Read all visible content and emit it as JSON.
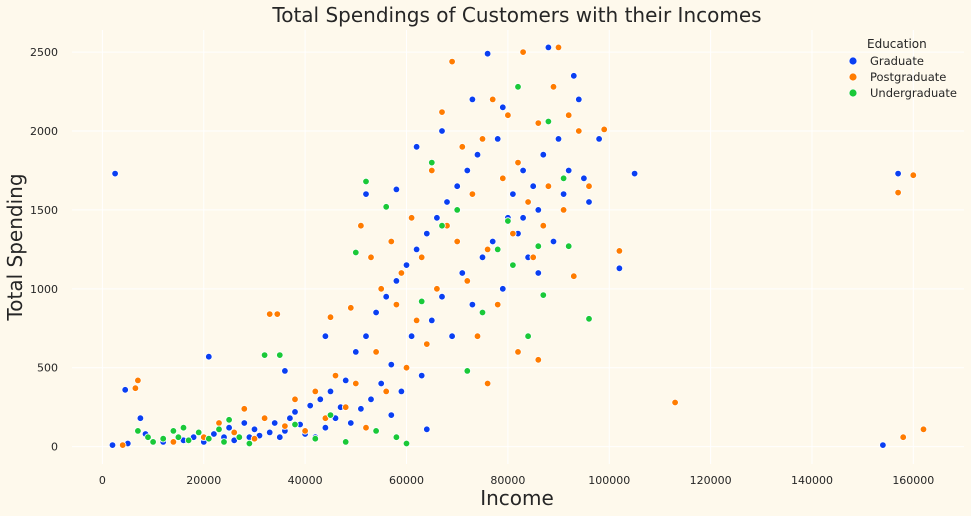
{
  "chart_data": {
    "type": "scatter",
    "title": "Total Spendings of Customers with their Incomes",
    "xlabel": "Income",
    "ylabel": "Total Spending",
    "xlim": [
      -6000,
      170000
    ],
    "ylim": [
      -110,
      2640
    ],
    "xticks": [
      "0",
      "20000",
      "40000",
      "60000",
      "80000",
      "100000",
      "120000",
      "140000",
      "160000"
    ],
    "yticks": [
      "0",
      "500",
      "1000",
      "1500",
      "2000",
      "2500"
    ],
    "grid": true,
    "legend_position": "top-right",
    "legend_title": "Education",
    "series": [
      {
        "name": "Graduate",
        "color": "#0a3ff2",
        "points": [
          [
            2000,
            10
          ],
          [
            2500,
            1730
          ],
          [
            4500,
            360
          ],
          [
            5000,
            20
          ],
          [
            7500,
            180
          ],
          [
            8500,
            80
          ],
          [
            12000,
            30
          ],
          [
            16000,
            40
          ],
          [
            18000,
            60
          ],
          [
            20000,
            30
          ],
          [
            22000,
            80
          ],
          [
            24000,
            60
          ],
          [
            25000,
            120
          ],
          [
            26000,
            40
          ],
          [
            28000,
            150
          ],
          [
            29000,
            60
          ],
          [
            30000,
            110
          ],
          [
            31000,
            70
          ],
          [
            33000,
            90
          ],
          [
            34000,
            150
          ],
          [
            35000,
            60
          ],
          [
            36000,
            100
          ],
          [
            37000,
            180
          ],
          [
            38000,
            220
          ],
          [
            39000,
            140
          ],
          [
            40000,
            80
          ],
          [
            41000,
            260
          ],
          [
            42000,
            60
          ],
          [
            43000,
            300
          ],
          [
            44000,
            120
          ],
          [
            45000,
            350
          ],
          [
            46000,
            180
          ],
          [
            47000,
            250
          ],
          [
            48000,
            420
          ],
          [
            49000,
            150
          ],
          [
            50000,
            600
          ],
          [
            51000,
            240
          ],
          [
            52000,
            700
          ],
          [
            53000,
            300
          ],
          [
            54000,
            850
          ],
          [
            55000,
            400
          ],
          [
            56000,
            950
          ],
          [
            57000,
            520
          ],
          [
            58000,
            1050
          ],
          [
            59000,
            350
          ],
          [
            60000,
            1150
          ],
          [
            61000,
            700
          ],
          [
            62000,
            1250
          ],
          [
            63000,
            450
          ],
          [
            64000,
            1350
          ],
          [
            65000,
            800
          ],
          [
            66000,
            1450
          ],
          [
            67000,
            950
          ],
          [
            68000,
            1550
          ],
          [
            69000,
            700
          ],
          [
            70000,
            1650
          ],
          [
            71000,
            1100
          ],
          [
            72000,
            1750
          ],
          [
            73000,
            900
          ],
          [
            74000,
            1850
          ],
          [
            75000,
            1200
          ],
          [
            76000,
            2490
          ],
          [
            77000,
            1300
          ],
          [
            78000,
            1950
          ],
          [
            79000,
            1000
          ],
          [
            80000,
            1450
          ],
          [
            81000,
            1600
          ],
          [
            82000,
            1350
          ],
          [
            83000,
            1750
          ],
          [
            84000,
            1200
          ],
          [
            85000,
            1650
          ],
          [
            86000,
            1500
          ],
          [
            87000,
            1850
          ],
          [
            88000,
            2530
          ],
          [
            89000,
            1300
          ],
          [
            90000,
            1950
          ],
          [
            91000,
            1600
          ],
          [
            92000,
            1750
          ],
          [
            93000,
            2350
          ],
          [
            94000,
            2200
          ],
          [
            95000,
            1700
          ],
          [
            96000,
            1550
          ],
          [
            98000,
            1950
          ],
          [
            102000,
            1130
          ],
          [
            105000,
            1730
          ],
          [
            154000,
            10
          ],
          [
            157000,
            1730
          ],
          [
            21000,
            570
          ],
          [
            36000,
            480
          ],
          [
            44000,
            700
          ],
          [
            52000,
            1600
          ],
          [
            58000,
            1630
          ],
          [
            62000,
            1900
          ],
          [
            67000,
            2000
          ],
          [
            73000,
            2200
          ],
          [
            79000,
            2150
          ],
          [
            83000,
            1450
          ],
          [
            86000,
            1100
          ],
          [
            57000,
            200
          ],
          [
            64000,
            110
          ]
        ]
      },
      {
        "name": "Postgraduate",
        "color": "#ff7c00",
        "points": [
          [
            4000,
            10
          ],
          [
            6500,
            370
          ],
          [
            7000,
            420
          ],
          [
            14000,
            30
          ],
          [
            20000,
            60
          ],
          [
            23000,
            150
          ],
          [
            26000,
            90
          ],
          [
            28000,
            240
          ],
          [
            30000,
            50
          ],
          [
            32000,
            180
          ],
          [
            33000,
            840
          ],
          [
            34500,
            840
          ],
          [
            36000,
            130
          ],
          [
            38000,
            300
          ],
          [
            40000,
            100
          ],
          [
            42000,
            350
          ],
          [
            44000,
            180
          ],
          [
            45000,
            820
          ],
          [
            46000,
            450
          ],
          [
            48000,
            250
          ],
          [
            49000,
            880
          ],
          [
            50000,
            400
          ],
          [
            51000,
            1400
          ],
          [
            52000,
            120
          ],
          [
            53000,
            1200
          ],
          [
            54000,
            600
          ],
          [
            55000,
            1000
          ],
          [
            56000,
            350
          ],
          [
            57000,
            1300
          ],
          [
            58000,
            900
          ],
          [
            59000,
            1100
          ],
          [
            60000,
            500
          ],
          [
            61000,
            1450
          ],
          [
            62000,
            800
          ],
          [
            63000,
            1200
          ],
          [
            64000,
            650
          ],
          [
            65000,
            1750
          ],
          [
            66000,
            1000
          ],
          [
            67000,
            2120
          ],
          [
            68000,
            1400
          ],
          [
            69000,
            2440
          ],
          [
            70000,
            1300
          ],
          [
            71000,
            1900
          ],
          [
            72000,
            1050
          ],
          [
            73000,
            1600
          ],
          [
            74000,
            700
          ],
          [
            75000,
            1950
          ],
          [
            76000,
            1250
          ],
          [
            77000,
            2200
          ],
          [
            78000,
            900
          ],
          [
            79000,
            1700
          ],
          [
            80000,
            2100
          ],
          [
            81000,
            1350
          ],
          [
            82000,
            1800
          ],
          [
            83000,
            2500
          ],
          [
            84000,
            1550
          ],
          [
            85000,
            1200
          ],
          [
            86000,
            2050
          ],
          [
            87000,
            1400
          ],
          [
            88000,
            1650
          ],
          [
            89000,
            2280
          ],
          [
            90000,
            2530
          ],
          [
            91000,
            1500
          ],
          [
            92000,
            2100
          ],
          [
            93000,
            1080
          ],
          [
            94000,
            2000
          ],
          [
            96000,
            1650
          ],
          [
            99000,
            2010
          ],
          [
            102000,
            1240
          ],
          [
            113000,
            280
          ],
          [
            157000,
            1610
          ],
          [
            158000,
            60
          ],
          [
            160000,
            1720
          ],
          [
            162000,
            110
          ],
          [
            86000,
            550
          ],
          [
            82000,
            600
          ],
          [
            76000,
            400
          ]
        ]
      },
      {
        "name": "Undergraduate",
        "color": "#1ac938",
        "points": [
          [
            7000,
            100
          ],
          [
            9000,
            60
          ],
          [
            10000,
            30
          ],
          [
            12000,
            50
          ],
          [
            14000,
            100
          ],
          [
            15000,
            60
          ],
          [
            16000,
            120
          ],
          [
            17000,
            40
          ],
          [
            19000,
            90
          ],
          [
            21000,
            50
          ],
          [
            23000,
            110
          ],
          [
            24000,
            30
          ],
          [
            25000,
            170
          ],
          [
            27000,
            60
          ],
          [
            29000,
            20
          ],
          [
            32000,
            580
          ],
          [
            35000,
            580
          ],
          [
            38000,
            140
          ],
          [
            42000,
            50
          ],
          [
            45000,
            200
          ],
          [
            48000,
            30
          ],
          [
            50000,
            1230
          ],
          [
            52000,
            1680
          ],
          [
            54000,
            100
          ],
          [
            56000,
            1520
          ],
          [
            58000,
            60
          ],
          [
            60000,
            20
          ],
          [
            63000,
            920
          ],
          [
            65000,
            1800
          ],
          [
            67000,
            1400
          ],
          [
            70000,
            1500
          ],
          [
            72000,
            480
          ],
          [
            75000,
            850
          ],
          [
            78000,
            1250
          ],
          [
            80000,
            1430
          ],
          [
            81000,
            1150
          ],
          [
            82000,
            2280
          ],
          [
            84000,
            700
          ],
          [
            86000,
            1270
          ],
          [
            87000,
            960
          ],
          [
            88000,
            2060
          ],
          [
            91000,
            1700
          ],
          [
            92000,
            1270
          ],
          [
            96000,
            810
          ]
        ]
      }
    ]
  }
}
